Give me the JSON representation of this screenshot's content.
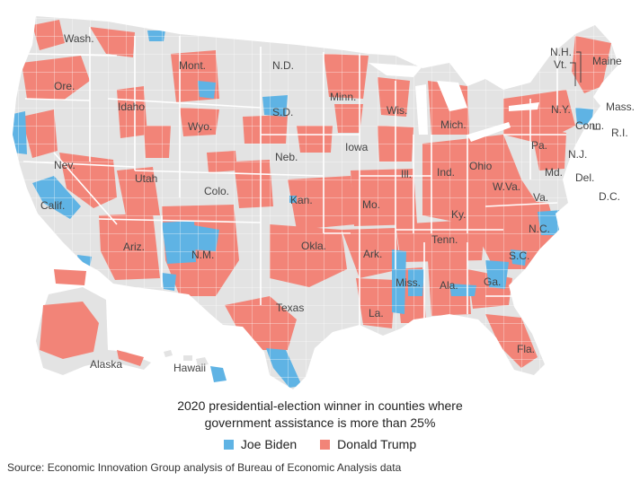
{
  "caption": {
    "line1": "2020 presidential-election winner in counties where",
    "line2": "government assistance is more than 25%"
  },
  "legend": {
    "biden": {
      "label": "Joe Biden",
      "color": "#5fb3e4"
    },
    "trump": {
      "label": "Donald Trump",
      "color": "#f28478"
    }
  },
  "source": "Source: Economic Innovation Group analysis of Bureau of Economic Analysis data",
  "colors": {
    "land": "#e3e3e3",
    "border": "#ffffff"
  },
  "states": {
    "wash": "Wash.",
    "ore": "Ore.",
    "idaho": "Idaho",
    "mont": "Mont.",
    "nd": "N.D.",
    "sd": "S.D.",
    "minn": "Minn.",
    "wis": "Wis.",
    "mich": "Mich.",
    "ny": "N.Y.",
    "maine": "Maine",
    "nh": "N.H.",
    "vt": "Vt.",
    "mass": "Mass.",
    "conn": "Conn.",
    "ri": "R.I.",
    "nj": "N.J.",
    "pa": "Pa.",
    "md": "Md.",
    "del": "Del.",
    "dc": "D.C.",
    "wyo": "Wyo.",
    "neb": "Neb.",
    "iowa": "Iowa",
    "ill": "Ill.",
    "ind": "Ind.",
    "ohio": "Ohio",
    "wva": "W.Va.",
    "va": "Va.",
    "nev": "Nev.",
    "utah": "Utah",
    "colo": "Colo.",
    "kan": "Kan.",
    "mo": "Mo.",
    "ky": "Ky.",
    "nc": "N.C.",
    "calif": "Calif.",
    "ariz": "Ariz.",
    "nm": "N.M.",
    "okla": "Okla.",
    "ark": "Ark.",
    "tenn": "Tenn.",
    "sc": "S.C.",
    "miss": "Miss.",
    "ala": "Ala.",
    "ga": "Ga.",
    "texas": "Texas",
    "la": "La.",
    "fla": "Fla.",
    "alaska": "Alaska",
    "hawaii": "Hawaii"
  }
}
